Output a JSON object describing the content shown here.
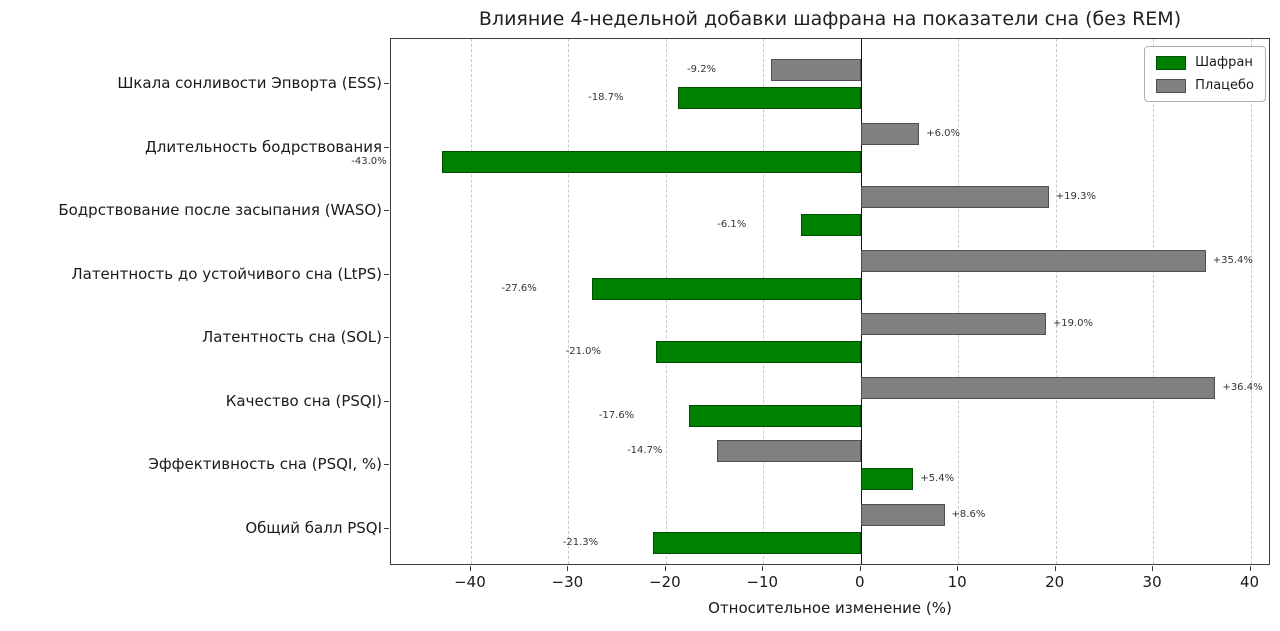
{
  "chart_data": {
    "type": "bar",
    "orientation": "horizontal",
    "title": "Влияние 4-недельной добавки шафрана на показатели сна (без REM)",
    "xlabel": "Относительное изменение (%)",
    "xlim": [
      -48.2,
      42.1
    ],
    "xticks": [
      -40,
      -30,
      -20,
      -10,
      0,
      10,
      20,
      30,
      40
    ],
    "xtick_labels": [
      "−40",
      "−30",
      "−20",
      "−10",
      "0",
      "10",
      "20",
      "30",
      "40"
    ],
    "grid": "vertical-dashed",
    "zero_line": true,
    "legend": {
      "position": "upper-right"
    },
    "categories": [
      "Шкала сонливости Эпворта (ESS)",
      "Длительность бодрствования",
      "Бодрствование после засыпания (WASO)",
      "Латентность до устойчивого сна (LtPS)",
      "Латентность сна (SOL)",
      "Качество сна (PSQI)",
      "Эффективность сна (PSQI, %)",
      "Общий балл PSQI"
    ],
    "series": [
      {
        "key": "saffron",
        "name": "Шафран",
        "color": "#008000",
        "values": [
          -18.7,
          -43.0,
          -6.1,
          -27.6,
          -21.0,
          -17.6,
          5.4,
          -21.3
        ],
        "labels": [
          "-18.7%",
          "-43.0%",
          "-6.1%",
          "-27.6%",
          "-21.0%",
          "-17.6%",
          "+5.4%",
          "-21.3%"
        ]
      },
      {
        "key": "placebo",
        "name": "Плацебо",
        "color": "#808080",
        "values": [
          -9.2,
          6.0,
          19.3,
          35.4,
          19.0,
          36.4,
          -14.7,
          8.6
        ],
        "labels": [
          "-9.2%",
          "+6.0%",
          "+19.3%",
          "+35.4%",
          "+19.0%",
          "+36.4%",
          "-14.7%",
          "+8.6%"
        ]
      }
    ]
  }
}
